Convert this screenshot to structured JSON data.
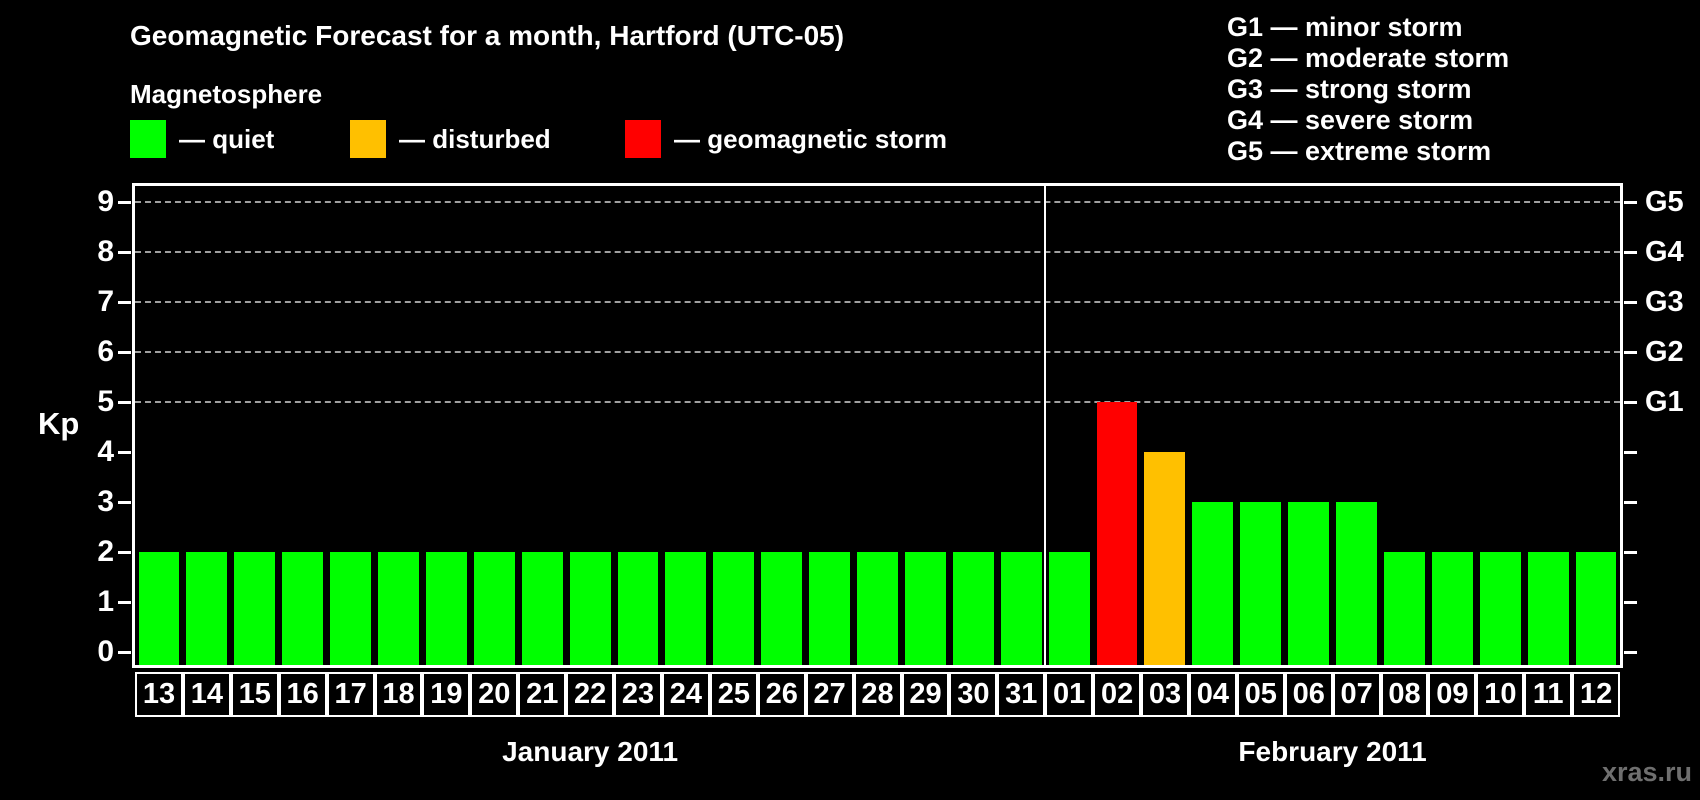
{
  "title": "Geomagnetic Forecast for a month, Hartford (UTC-05)",
  "magnetosphere": {
    "heading": "Magnetosphere",
    "legend": [
      {
        "status": "quiet",
        "label": "— quiet",
        "color": "#00ff00"
      },
      {
        "status": "disturbed",
        "label": "— disturbed",
        "color": "#ffc000"
      },
      {
        "status": "storm",
        "label": "— geomagnetic storm",
        "color": "#ff0000"
      }
    ]
  },
  "g_scale_legend": [
    "G1 — minor storm",
    "G2 — moderate storm",
    "G3 — strong storm",
    "G4 — severe storm",
    "G5 — extreme storm"
  ],
  "watermark": "xras.ru",
  "chart_data": {
    "type": "bar",
    "ylabel": "Kp",
    "ylim": [
      0,
      9
    ],
    "yticks": [
      0,
      1,
      2,
      3,
      4,
      5,
      6,
      7,
      8,
      9
    ],
    "grid_levels": [
      5,
      6,
      7,
      8,
      9
    ],
    "grid_on": true,
    "legend_position": "top",
    "right_axis": [
      {
        "level": 5,
        "label": "G1"
      },
      {
        "level": 6,
        "label": "G2"
      },
      {
        "level": 7,
        "label": "G3"
      },
      {
        "level": 8,
        "label": "G4"
      },
      {
        "level": 9,
        "label": "G5"
      }
    ],
    "status_colors": {
      "quiet": "#00ff00",
      "disturbed": "#ffc000",
      "storm": "#ff0000"
    },
    "months": [
      {
        "label": "January 2011",
        "day_count": 19
      },
      {
        "label": "February 2011",
        "day_count": 12
      }
    ],
    "bars": [
      {
        "day": "13",
        "month": "january",
        "kp": 2,
        "status": "quiet"
      },
      {
        "day": "14",
        "month": "january",
        "kp": 2,
        "status": "quiet"
      },
      {
        "day": "15",
        "month": "january",
        "kp": 2,
        "status": "quiet"
      },
      {
        "day": "16",
        "month": "january",
        "kp": 2,
        "status": "quiet"
      },
      {
        "day": "17",
        "month": "january",
        "kp": 2,
        "status": "quiet"
      },
      {
        "day": "18",
        "month": "january",
        "kp": 2,
        "status": "quiet"
      },
      {
        "day": "19",
        "month": "january",
        "kp": 2,
        "status": "quiet"
      },
      {
        "day": "20",
        "month": "january",
        "kp": 2,
        "status": "quiet"
      },
      {
        "day": "21",
        "month": "january",
        "kp": 2,
        "status": "quiet"
      },
      {
        "day": "22",
        "month": "january",
        "kp": 2,
        "status": "quiet"
      },
      {
        "day": "23",
        "month": "january",
        "kp": 2,
        "status": "quiet"
      },
      {
        "day": "24",
        "month": "january",
        "kp": 2,
        "status": "quiet"
      },
      {
        "day": "25",
        "month": "january",
        "kp": 2,
        "status": "quiet"
      },
      {
        "day": "26",
        "month": "january",
        "kp": 2,
        "status": "quiet"
      },
      {
        "day": "27",
        "month": "january",
        "kp": 2,
        "status": "quiet"
      },
      {
        "day": "28",
        "month": "january",
        "kp": 2,
        "status": "quiet"
      },
      {
        "day": "29",
        "month": "january",
        "kp": 2,
        "status": "quiet"
      },
      {
        "day": "30",
        "month": "january",
        "kp": 2,
        "status": "quiet"
      },
      {
        "day": "31",
        "month": "january",
        "kp": 2,
        "status": "quiet"
      },
      {
        "day": "01",
        "month": "february",
        "kp": 2,
        "status": "quiet"
      },
      {
        "day": "02",
        "month": "february",
        "kp": 5,
        "status": "storm"
      },
      {
        "day": "03",
        "month": "february",
        "kp": 4,
        "status": "disturbed"
      },
      {
        "day": "04",
        "month": "february",
        "kp": 3,
        "status": "quiet"
      },
      {
        "day": "05",
        "month": "february",
        "kp": 3,
        "status": "quiet"
      },
      {
        "day": "06",
        "month": "february",
        "kp": 3,
        "status": "quiet"
      },
      {
        "day": "07",
        "month": "february",
        "kp": 3,
        "status": "quiet"
      },
      {
        "day": "08",
        "month": "february",
        "kp": 2,
        "status": "quiet"
      },
      {
        "day": "09",
        "month": "february",
        "kp": 2,
        "status": "quiet"
      },
      {
        "day": "10",
        "month": "february",
        "kp": 2,
        "status": "quiet"
      },
      {
        "day": "11",
        "month": "february",
        "kp": 2,
        "status": "quiet"
      },
      {
        "day": "12",
        "month": "february",
        "kp": 2,
        "status": "quiet"
      }
    ]
  }
}
